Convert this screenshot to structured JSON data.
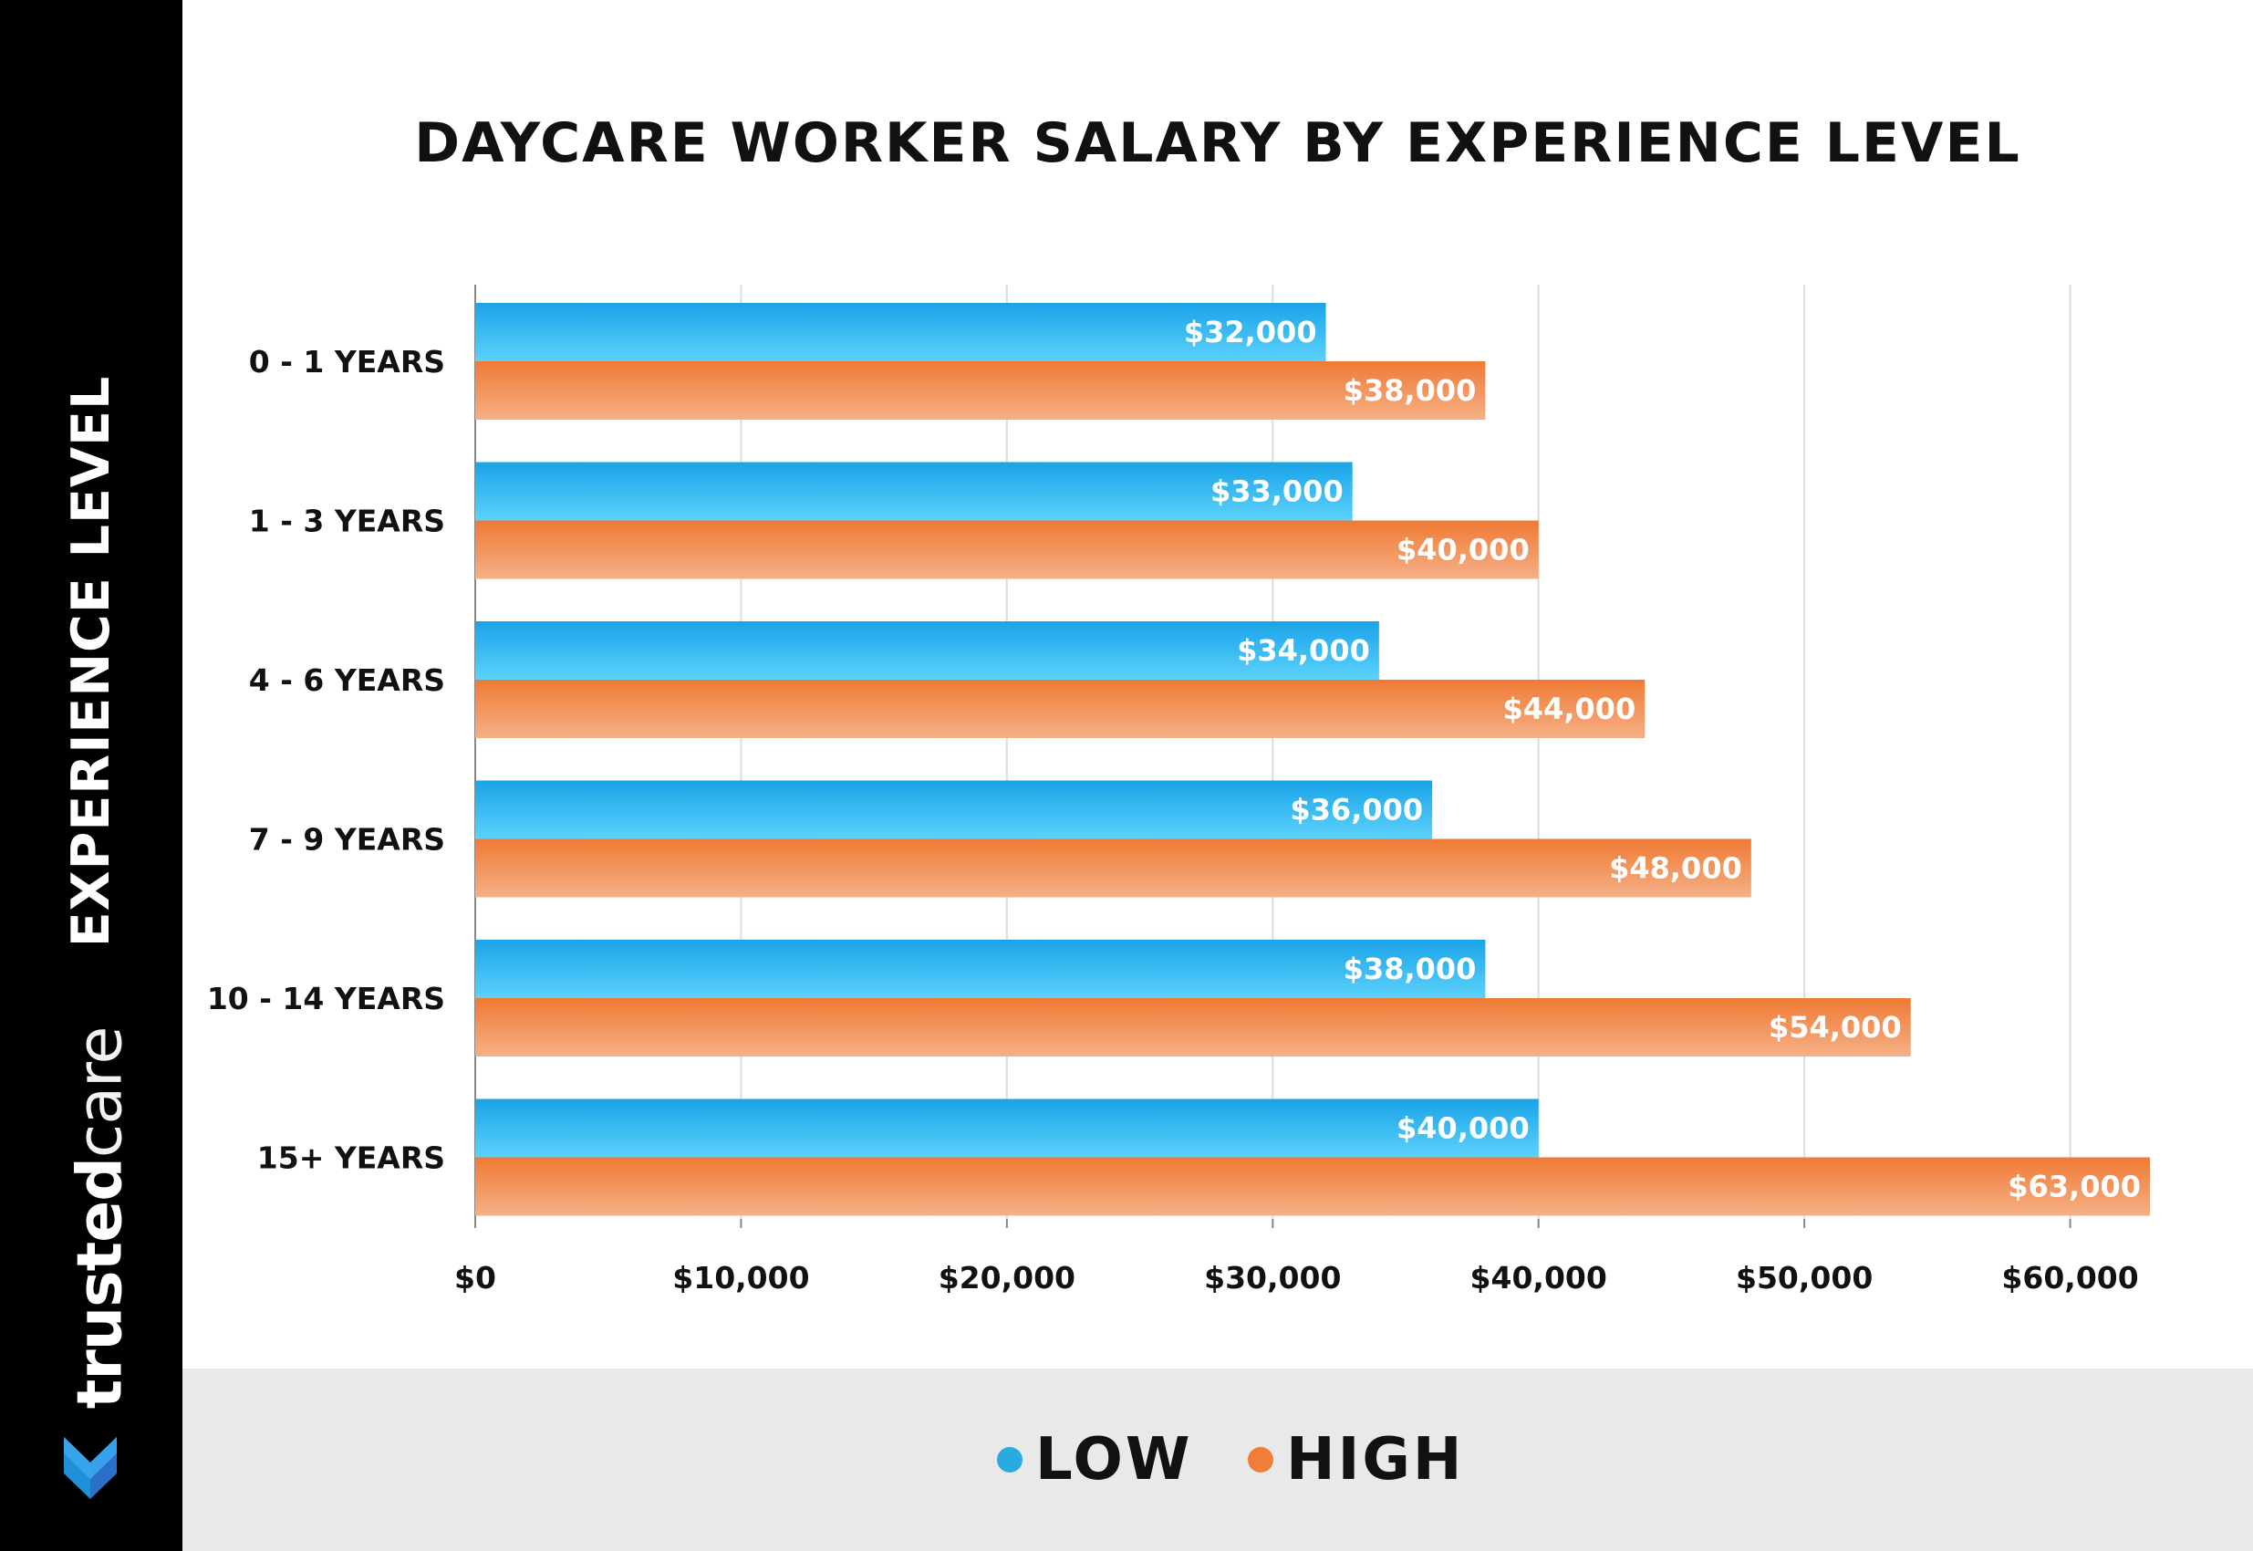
{
  "sidebar": {
    "title": "EXPERIENCE LEVEL",
    "brand_part1": "trusted",
    "brand_part2": "care",
    "logo_icon": "heart-logo-icon"
  },
  "chart_data": {
    "type": "bar",
    "orientation": "horizontal",
    "title": "DAYCARE WORKER SALARY BY EXPERIENCE LEVEL",
    "xlabel": "",
    "ylabel": "EXPERIENCE LEVEL",
    "categories": [
      "0 - 1 YEARS",
      "1 - 3 YEARS",
      "4 - 6 YEARS",
      "7 - 9 YEARS",
      "10 - 14 YEARS",
      "15+ YEARS"
    ],
    "series": [
      {
        "name": "LOW",
        "color": "#29abe2",
        "values": [
          32000,
          33000,
          34000,
          36000,
          38000,
          40000
        ],
        "labels": [
          "$32,000",
          "$33,000",
          "$34,000",
          "$36,000",
          "$38,000",
          "$40,000"
        ]
      },
      {
        "name": "HIGH",
        "color": "#f07d3a",
        "values": [
          38000,
          40000,
          44000,
          48000,
          54000,
          63000
        ],
        "labels": [
          "$38,000",
          "$40,000",
          "$44,000",
          "$48,000",
          "$54,000",
          "$63,000"
        ]
      }
    ],
    "xlim": [
      0,
      63000
    ],
    "x_ticks": [
      0,
      10000,
      20000,
      30000,
      40000,
      50000,
      60000
    ],
    "x_tick_labels": [
      "$0",
      "$10,000",
      "$20,000",
      "$30,000",
      "$40,000",
      "$50,000",
      "$60,000"
    ],
    "grid": true,
    "legend_position": "bottom-center"
  },
  "legend": {
    "low": "LOW",
    "high": "HIGH"
  },
  "colors": {
    "low": "#29abe2",
    "high": "#f07d3a",
    "sidebar": "#000000",
    "legend_band": "#e9e9e9"
  }
}
